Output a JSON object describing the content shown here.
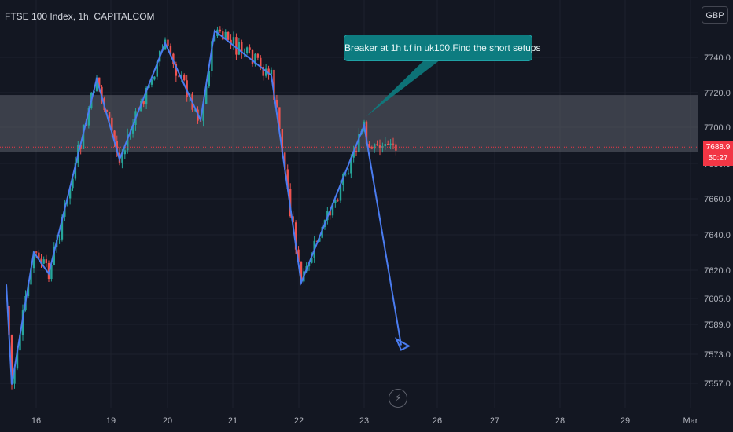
{
  "header": {
    "symbol_title": "FTSE 100 Index, 1h, CAPITALCOM",
    "currency_button": "GBP"
  },
  "annotation": {
    "callout_text": "Breaker at 1h t.f in uk100.Find the short setups"
  },
  "last_price": {
    "value": "7688.9",
    "countdown": "50:27"
  },
  "colors": {
    "background": "#131722",
    "up_candle": "#26a69a",
    "down_candle": "#ef5350",
    "zigzag": "#4a7cf0",
    "zone": "#5d606b",
    "callout": "#0d7c80",
    "price_line": "#f23645"
  },
  "chart_data": {
    "type": "candlestick",
    "title": "FTSE 100 Index, 1h, CAPITALCOM",
    "ylabel": "GBP",
    "y_tick_labels": [
      "7740.0",
      "7720.0",
      "7700.0",
      "7680.0",
      "7660.0",
      "7640.0",
      "7620.0",
      "7605.0",
      "7589.0",
      "7573.0",
      "7557.0"
    ],
    "x_tick_labels": [
      "16",
      "19",
      "20",
      "21",
      "22",
      "23",
      "26",
      "27",
      "28",
      "29",
      "Mar"
    ],
    "ylim": [
      7549,
      7756
    ],
    "grid": true,
    "zone": {
      "top": 7718,
      "bottom": 7686
    },
    "last_price": 7688.9,
    "zigzag": [
      {
        "x": "15",
        "y": 7612
      },
      {
        "x": "15",
        "y": 7556
      },
      {
        "x": "16",
        "y": 7630
      },
      {
        "x": "16",
        "y": 7618
      },
      {
        "x": "16",
        "y": 7727
      },
      {
        "x": "19",
        "y": 7682
      },
      {
        "x": "20",
        "y": 7747
      },
      {
        "x": "20",
        "y": 7704
      },
      {
        "x": "20",
        "y": 7754
      },
      {
        "x": "21",
        "y": 7729
      },
      {
        "x": "22",
        "y": 7613
      },
      {
        "x": "23",
        "y": 7701
      },
      {
        "x": "23",
        "y": 7578
      }
    ]
  }
}
